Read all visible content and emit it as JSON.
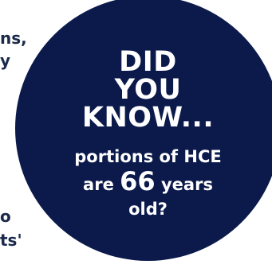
{
  "background_text": {
    "line1": "ns,",
    "line2": "y",
    "line3": "o",
    "line4": "ts'"
  },
  "circle": {
    "color": "#0b1a4b",
    "headline_line1": "DID",
    "headline_line2": "YOU",
    "headline_line3": "KNOW...",
    "body_line1": "portions of HCE",
    "body_line2_prefix": "are",
    "body_line2_number": "66",
    "body_line2_suffix": "years",
    "body_line3": "old?"
  }
}
